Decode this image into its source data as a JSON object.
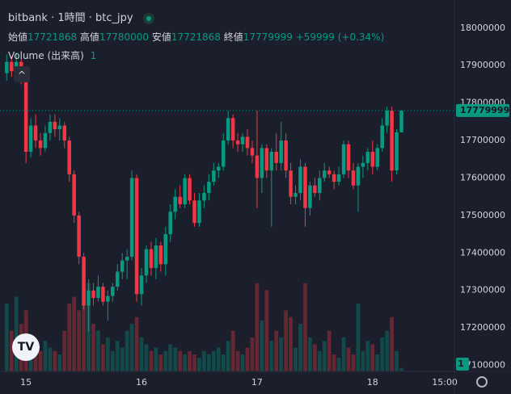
{
  "chart_data": {
    "type": "candlestick",
    "title": "bitbank · 1時間 · btc_jpy",
    "ohlc_labels": [
      "始値",
      "高値",
      "安値",
      "終値"
    ],
    "change_label": "+59999 (+0.34%)",
    "volume_name": "Volume (出来高)",
    "up_color": "#089981",
    "down_color": "#f23645",
    "grid": false,
    "xlim": [
      -1.4,
      93
    ],
    "xticks": [
      {
        "value": 4,
        "label": "15"
      },
      {
        "value": 28,
        "label": "16"
      },
      {
        "value": 52,
        "label": "17"
      },
      {
        "value": 76,
        "label": "18"
      },
      {
        "value": 91,
        "label": "15:00"
      }
    ],
    "ylim": [
      17084000,
      18075000
    ],
    "yticks": [
      17100000,
      17200000,
      17300000,
      17400000,
      17500000,
      17600000,
      17700000,
      17800000,
      17900000,
      18000000
    ],
    "open": [
      17880000,
      17910000,
      17885000,
      17910000,
      17865000,
      17670000,
      17740000,
      17700000,
      17680000,
      17720000,
      17750000,
      17730000,
      17740000,
      17700000,
      17610000,
      17500000,
      17390000,
      17260000,
      17300000,
      17280000,
      17310000,
      17270000,
      17285000,
      17310000,
      17350000,
      17380000,
      17390000,
      17600000,
      17290000,
      17340000,
      17410000,
      17360000,
      17420000,
      17370000,
      17450000,
      17510000,
      17550000,
      17530000,
      17600000,
      17540000,
      17480000,
      17540000,
      17560000,
      17590000,
      17620000,
      17630000,
      17700000,
      17760000,
      17700000,
      17690000,
      17710000,
      17680000,
      17660000,
      17600000,
      17680000,
      17620000,
      17670000,
      17640000,
      17700000,
      17620000,
      17550000,
      17560000,
      17630000,
      17520000,
      17580000,
      17560000,
      17600000,
      17620000,
      17610000,
      17590000,
      17610000,
      17690000,
      17620000,
      17580000,
      17630000,
      17640000,
      17670000,
      17630000,
      17680000,
      17740000,
      17780000,
      17620000,
      17721868
    ],
    "high": [
      17930000,
      17925000,
      17935000,
      17920000,
      17870000,
      17760000,
      17770000,
      17720000,
      17740000,
      17770000,
      17770000,
      17760000,
      17750000,
      17710000,
      17620000,
      17510000,
      17400000,
      17330000,
      17320000,
      17340000,
      17320000,
      17300000,
      17320000,
      17370000,
      17400000,
      17410000,
      17620000,
      17610000,
      17360000,
      17420000,
      17430000,
      17440000,
      17430000,
      17470000,
      17530000,
      17570000,
      17580000,
      17610000,
      17610000,
      17560000,
      17560000,
      17580000,
      17610000,
      17640000,
      17640000,
      17720000,
      17780000,
      17770000,
      17720000,
      17720000,
      17730000,
      17700000,
      17780000,
      17690000,
      17690000,
      17680000,
      17720000,
      17750000,
      17720000,
      17640000,
      17580000,
      17650000,
      17640000,
      17590000,
      17600000,
      17620000,
      17640000,
      17630000,
      17620000,
      17630000,
      17700000,
      17700000,
      17640000,
      17640000,
      17660000,
      17680000,
      17700000,
      17690000,
      17760000,
      17790000,
      17790000,
      17730000,
      17780000
    ],
    "low": [
      17860000,
      17870000,
      17860000,
      17850000,
      17640000,
      17655000,
      17680000,
      17660000,
      17670000,
      17700000,
      17710000,
      17700000,
      17680000,
      17590000,
      17480000,
      17370000,
      17250000,
      17190000,
      17260000,
      17270000,
      17260000,
      17220000,
      17270000,
      17300000,
      17330000,
      17330000,
      17380000,
      17270000,
      17260000,
      17320000,
      17340000,
      17330000,
      17350000,
      17340000,
      17430000,
      17490000,
      17520000,
      17520000,
      17530000,
      17470000,
      17470000,
      17520000,
      17540000,
      17580000,
      17600000,
      17620000,
      17690000,
      17680000,
      17670000,
      17670000,
      17660000,
      17640000,
      17520000,
      17560000,
      17600000,
      17470000,
      17620000,
      17620000,
      17600000,
      17530000,
      17530000,
      17540000,
      17470000,
      17500000,
      17550000,
      17540000,
      17590000,
      17600000,
      17570000,
      17580000,
      17600000,
      17600000,
      17570000,
      17510000,
      17600000,
      17620000,
      17610000,
      17620000,
      17670000,
      17720000,
      17590000,
      17610000,
      17721868
    ],
    "close": [
      17910000,
      17885000,
      17910000,
      17865000,
      17670000,
      17740000,
      17700000,
      17680000,
      17720000,
      17750000,
      17730000,
      17740000,
      17700000,
      17610000,
      17500000,
      17390000,
      17260000,
      17300000,
      17280000,
      17310000,
      17270000,
      17285000,
      17310000,
      17350000,
      17380000,
      17390000,
      17600000,
      17290000,
      17340000,
      17410000,
      17360000,
      17420000,
      17370000,
      17450000,
      17510000,
      17550000,
      17530000,
      17600000,
      17540000,
      17480000,
      17540000,
      17560000,
      17590000,
      17620000,
      17630000,
      17700000,
      17760000,
      17700000,
      17690000,
      17710000,
      17680000,
      17660000,
      17600000,
      17680000,
      17620000,
      17670000,
      17640000,
      17700000,
      17620000,
      17550000,
      17560000,
      17630000,
      17520000,
      17580000,
      17560000,
      17600000,
      17620000,
      17610000,
      17590000,
      17610000,
      17690000,
      17620000,
      17580000,
      17630000,
      17640000,
      17670000,
      17630000,
      17680000,
      17740000,
      17780000,
      17620000,
      17721868,
      17779999
    ],
    "volume": [
      20,
      12,
      22,
      14,
      18,
      10,
      8,
      6,
      9,
      7,
      6,
      5,
      12,
      20,
      22,
      18,
      24,
      26,
      14,
      12,
      8,
      10,
      6,
      9,
      7,
      12,
      14,
      16,
      10,
      8,
      6,
      7,
      5,
      6,
      8,
      7,
      6,
      5,
      6,
      5,
      4,
      6,
      5,
      6,
      7,
      5,
      9,
      12,
      6,
      5,
      7,
      10,
      26,
      15,
      24,
      9,
      12,
      10,
      18,
      16,
      7,
      14,
      26,
      10,
      8,
      6,
      9,
      12,
      5,
      4,
      10,
      7,
      5,
      20,
      6,
      9,
      8,
      5,
      10,
      12,
      16,
      6,
      1
    ]
  }
}
